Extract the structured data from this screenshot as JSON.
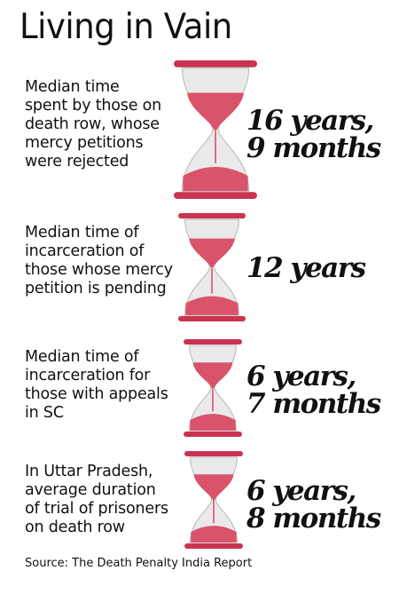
{
  "title": "Living in Vain",
  "source": "Source: The Death Penalty India Report",
  "colors": {
    "accent": "#c9344f",
    "sand": "#d9536a",
    "glass": "#eaeaea",
    "glass_stroke": "#b8b8b8"
  },
  "chart_data": {
    "type": "table",
    "title": "Living in Vain",
    "rows": [
      {
        "label": "Median time spent by those on death row, whose mercy petitions were rejected",
        "label_lines": [
          "Median time",
          "spent by those on",
          "death row, whose",
          "mercy petitions",
          "were rejected"
        ],
        "value": "16 years, 9 months",
        "value_lines": [
          "16 years,",
          "9 months"
        ],
        "icon": "hourglass-icon"
      },
      {
        "label": "Median time of incarceration of those whose mercy petition is pending",
        "label_lines": [
          "Median time of",
          "incarceration of",
          "those whose mercy",
          "petition is pending"
        ],
        "value": "12 years",
        "value_lines": [
          "12 years"
        ],
        "icon": "hourglass-icon"
      },
      {
        "label": "Median time of incarceration for those with appeals in SC",
        "label_lines": [
          "Median time of",
          "incarceration for",
          "those with appeals",
          "in SC"
        ],
        "value": "6 years, 7 months",
        "value_lines": [
          "6 years,",
          "7 months"
        ],
        "icon": "hourglass-icon"
      },
      {
        "label": "In Uttar Pradesh, average duration of trial of prisoners on death row",
        "label_lines": [
          "In Uttar Pradesh,",
          "average duration",
          "of trial of prisoners",
          "on death row"
        ],
        "value": "6 years, 8 months",
        "value_lines": [
          "6 years,",
          "8 months"
        ],
        "icon": "hourglass-icon"
      }
    ]
  }
}
